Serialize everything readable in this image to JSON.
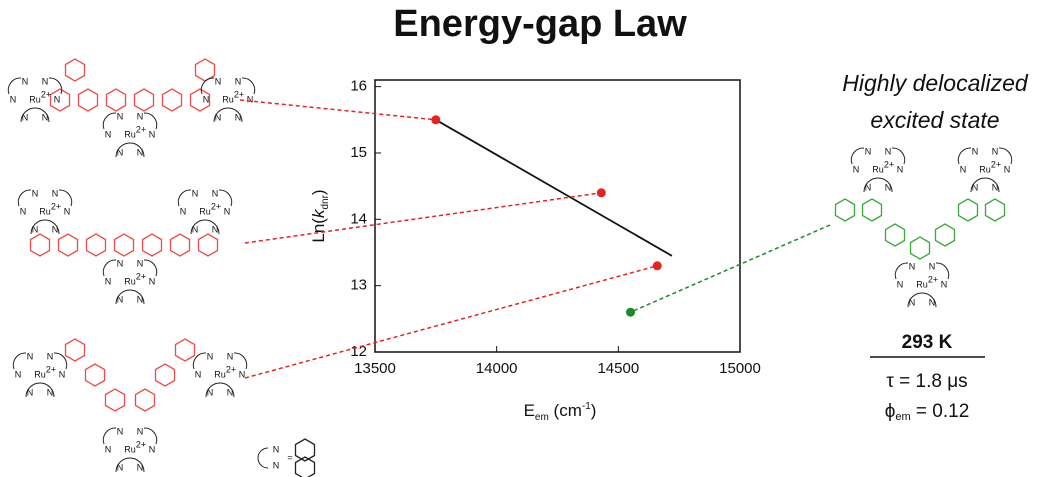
{
  "chart_data": {
    "type": "scatter",
    "title": "Energy-gap Law",
    "xlabel": [
      "E",
      "em",
      " (cm",
      "-1",
      ")"
    ],
    "ylabel": [
      "Ln(",
      "k",
      "dnr",
      ")"
    ],
    "xlim": [
      13500,
      15000
    ],
    "ylim": [
      12,
      16.1
    ],
    "xticks": [
      13500,
      14000,
      14500,
      15000
    ],
    "yticks": [
      12,
      13,
      14,
      15,
      16
    ],
    "series": [
      {
        "color": "#e8231f",
        "x": [
          13750,
          14430,
          14660
        ],
        "values": [
          15.5,
          14.4,
          13.3
        ]
      },
      {
        "color": "#1a8a2a",
        "x": [
          14550
        ],
        "values": [
          12.6
        ]
      }
    ],
    "fit": {
      "color": "#111111",
      "x": [
        13750,
        14720
      ],
      "values": [
        15.5,
        13.45
      ]
    },
    "annotation": [
      "Highly delocalized",
      "excited state"
    ],
    "annotation_color": "#2ca02c",
    "table": {
      "header": "293 K",
      "tau": "τ = 1.8 μs",
      "phi": [
        "ϕ",
        "em",
        " = 0.12"
      ]
    },
    "atoms": {
      "ru": "Ru",
      "charge": "2+",
      "n": "N",
      "eq": "="
    }
  }
}
